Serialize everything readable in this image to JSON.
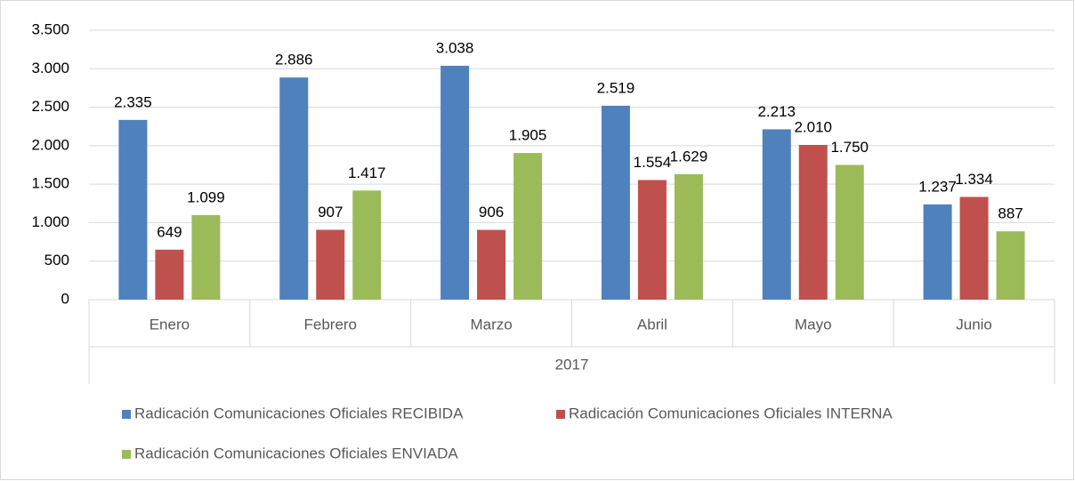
{
  "chart_data": {
    "type": "bar",
    "categories": [
      "Enero",
      "Febrero",
      "Marzo",
      "Abril",
      "Mayo",
      "Junio"
    ],
    "x_group": "2017",
    "series": [
      {
        "name": "Radicación Comunicaciones Oficiales RECIBIDA",
        "color": "#4f81bd",
        "values": [
          2335,
          2886,
          3038,
          2519,
          2213,
          1237
        ],
        "value_labels": [
          "2.335",
          "2.886",
          "3.038",
          "2.519",
          "2.213",
          "1.237"
        ]
      },
      {
        "name": "Radicación Comunicaciones Oficiales INTERNA",
        "color": "#c0504d",
        "values": [
          649,
          907,
          906,
          1554,
          2010,
          1334
        ],
        "value_labels": [
          "649",
          "907",
          "906",
          "1.554",
          "2.010",
          "1.334"
        ]
      },
      {
        "name": "Radicación Comunicaciones Oficiales ENVIADA",
        "color": "#9bbb59",
        "values": [
          1099,
          1417,
          1905,
          1629,
          1750,
          887
        ],
        "value_labels": [
          "1.099",
          "1.417",
          "1.905",
          "1.629",
          "1.750",
          "887"
        ]
      }
    ],
    "ylim": [
      0,
      3500
    ],
    "yticks": [
      0,
      500,
      {
        "value": 1000,
        "label": "1.000"
      },
      {
        "value": 1500,
        "label": "1.500"
      },
      {
        "value": 2000,
        "label": "2.000"
      },
      {
        "value": 2500,
        "label": "2.500"
      },
      {
        "value": 3000,
        "label": "3.000"
      },
      {
        "value": 3500,
        "label": "3.500"
      }
    ],
    "grid": true,
    "legend": "bottom"
  }
}
